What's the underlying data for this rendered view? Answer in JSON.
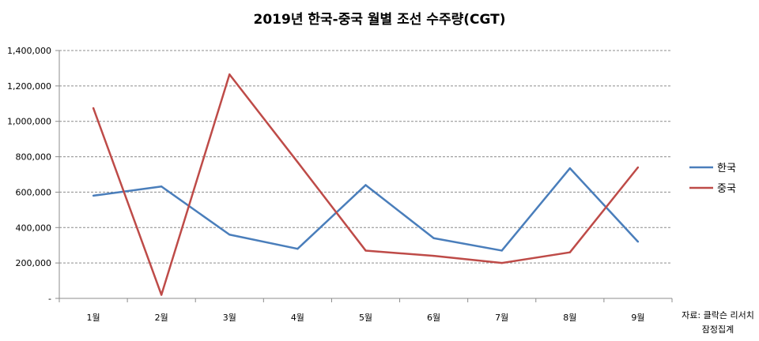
{
  "chart_data": {
    "type": "line",
    "title": "2019년 한국-중국 월별 조선 수주량(CGT)",
    "categories": [
      "1월",
      "2월",
      "3월",
      "4월",
      "5월",
      "6월",
      "7월",
      "8월",
      "9월"
    ],
    "y_tick_labels": [
      "-",
      "200,000",
      "400,000",
      "600,000",
      "800,000",
      "1,000,000",
      "1,200,000",
      "1,400,000"
    ],
    "ylim": [
      0,
      1400000
    ],
    "grid": "horizontal dashed",
    "legend_position": "right",
    "series": [
      {
        "name": "한국",
        "color": "#4a7ebb",
        "values": [
          580000,
          632000,
          360000,
          280000,
          640000,
          340000,
          270000,
          735000,
          320000
        ]
      },
      {
        "name": "중국",
        "color": "#be4b48",
        "values": [
          1075000,
          20000,
          1265000,
          770000,
          270000,
          240000,
          200000,
          260000,
          740000
        ]
      }
    ],
    "source_lines": [
      "자료: 클락슨 리서치",
      "잠정집계"
    ]
  }
}
